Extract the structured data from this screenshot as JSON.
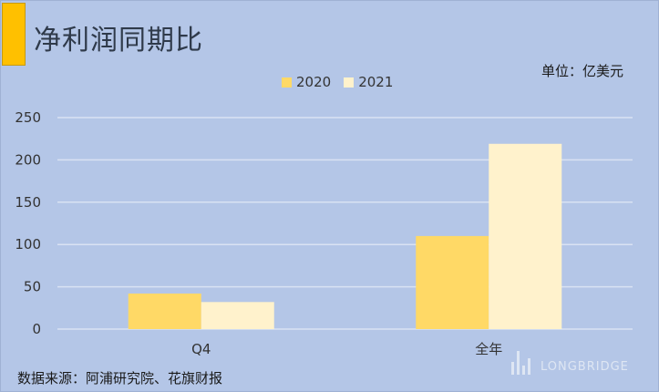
{
  "chart_data": {
    "type": "bar",
    "title": "净利润同期比",
    "unit_label": "单位：亿美元",
    "categories": [
      "Q4",
      "全年"
    ],
    "series": [
      {
        "name": "2020",
        "values": [
          42,
          110
        ],
        "color": "#ffd966"
      },
      {
        "name": "2021",
        "values": [
          32,
          219
        ],
        "color": "#fff2cc"
      }
    ],
    "ylim": [
      0,
      250
    ],
    "yticks": [
      0,
      50,
      100,
      150,
      200,
      250
    ],
    "grid": true,
    "legend_position": "top-center",
    "source": "数据来源：阿浦研究院、花旗财报"
  },
  "colors": {
    "background": "#b4c6e7",
    "accent": "#ffc000",
    "gridline": "#d9e2f3"
  },
  "watermark": {
    "text": "LONGBRIDGE"
  }
}
